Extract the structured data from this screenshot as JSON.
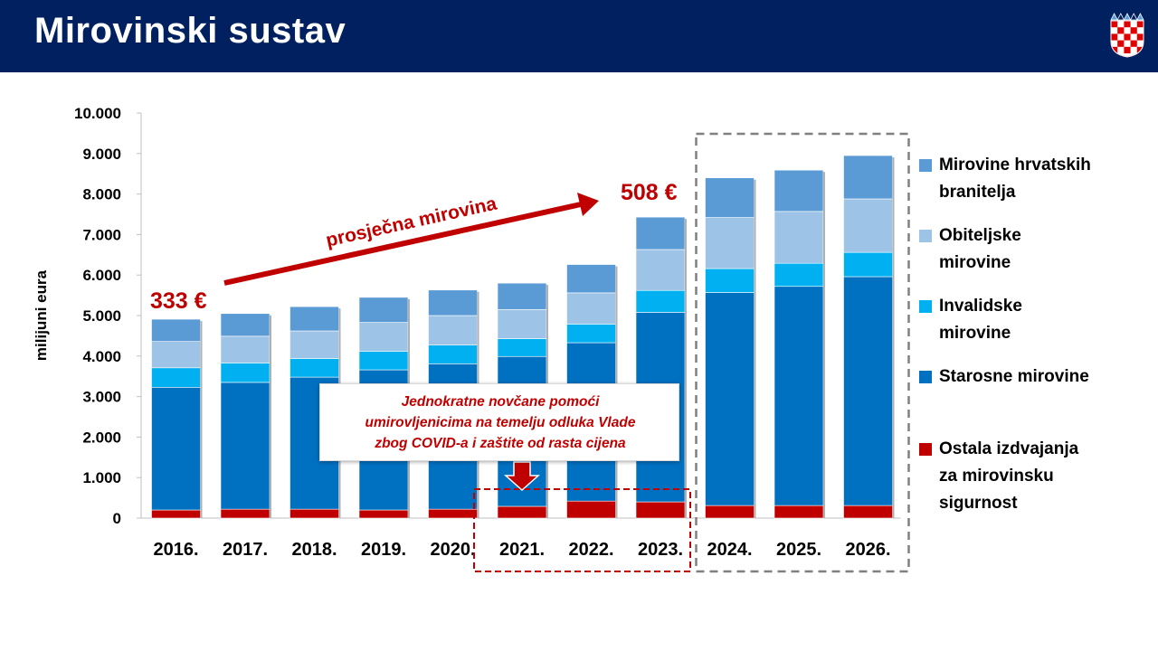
{
  "header": {
    "title": "Mirovinski sustav",
    "background_color": "#002060",
    "emblem_icon": "croatian-coat-of-arms-icon"
  },
  "chart_data": {
    "type": "bar",
    "stacked": true,
    "title": "",
    "ylabel": "milijuni eura",
    "xlabel": "",
    "ylim": [
      0,
      10000
    ],
    "yticks": [
      "0",
      "1.000",
      "2.000",
      "3.000",
      "4.000",
      "5.000",
      "6.000",
      "7.000",
      "8.000",
      "9.000",
      "10.000"
    ],
    "categories": [
      "2016.",
      "2017.",
      "2018.",
      "2019.",
      "2020.",
      "2021.",
      "2022.",
      "2023.",
      "2024.",
      "2025.",
      "2026."
    ],
    "series": [
      {
        "name": "Ostala izdvajanja za mirovinsku sigurnost",
        "color": "#c00000",
        "values": [
          200,
          220,
          220,
          200,
          220,
          290,
          420,
          400,
          310,
          310,
          310
        ]
      },
      {
        "name": "Starosne mirovine",
        "color": "#0070c0",
        "values": [
          3030,
          3130,
          3260,
          3460,
          3590,
          3700,
          3910,
          4680,
          5260,
          5410,
          5650
        ]
      },
      {
        "name": "Invalidske mirovine",
        "color": "#00b0f0",
        "values": [
          480,
          480,
          460,
          460,
          460,
          440,
          460,
          540,
          590,
          570,
          600
        ]
      },
      {
        "name": "Obiteljske mirovine",
        "color": "#9dc3e6",
        "values": [
          650,
          660,
          680,
          710,
          730,
          720,
          770,
          1010,
          1260,
          1280,
          1320
        ]
      },
      {
        "name": "Mirovine hrvatskih branitelja",
        "color": "#5b9bd5",
        "values": [
          550,
          560,
          600,
          620,
          630,
          650,
          700,
          800,
          980,
          1020,
          1070
        ]
      }
    ],
    "grid": false,
    "legend_position": "right",
    "annotations": {
      "start_label": "333 €",
      "end_label": "508 €",
      "arrow_label": "prosječna mirovina",
      "callout_lines": "Jednokratne novčane pomoći\numirovljenicima na temelju odluka Vlade\nzbog COVID-a i zaštite od rasta cijena",
      "annotation_color": "#c00000",
      "covid_box_years": [
        "2021.",
        "2022.",
        "2023."
      ],
      "projection_box_years": [
        "2024.",
        "2025.",
        "2026."
      ]
    }
  },
  "legend": {
    "items": [
      {
        "label": "Mirovine hrvatskih\nbranitelja",
        "color": "#5b9bd5"
      },
      {
        "label": "Obiteljske\nmirovine",
        "color": "#9dc3e6"
      },
      {
        "label": "Invalidske\nmirovine",
        "color": "#00b0f0"
      },
      {
        "label": "Starosne mirovine",
        "color": "#0070c0"
      },
      {
        "label": "Ostala izdvajanja\nza mirovinsku\nsigurnost",
        "color": "#c00000"
      }
    ]
  }
}
